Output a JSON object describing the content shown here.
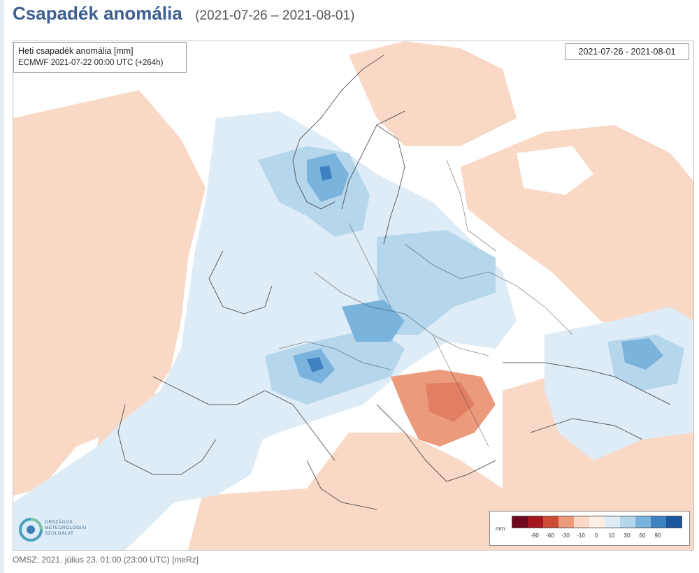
{
  "header": {
    "title": "Csapadék anomália",
    "period": "(2021-07-26 – 2021-08-01)"
  },
  "map": {
    "info_title": "Heti csapadék anomália [mm]",
    "info_model": "ECMWF 2021-07-22 00:00 UTC (+264h)",
    "date_range": "2021-07-26 - 2021-08-01"
  },
  "legend": {
    "unit": "mm",
    "ticks": [
      "-90",
      "-60",
      "-30",
      "-10",
      "0",
      "10",
      "30",
      "60",
      "90"
    ],
    "colors": [
      "#6e0a1e",
      "#a3161e",
      "#cf4d34",
      "#eb9a7b",
      "#f9d8c6",
      "#fdeee4",
      "#ddecf7",
      "#b6d6ec",
      "#7ab3dc",
      "#3f82c2",
      "#1b569e"
    ]
  },
  "logo": {
    "line1": "ORSZÁGOS",
    "line2": "METEOROLÓGIAI",
    "line3": "SZOLGÁLAT"
  },
  "footer": {
    "text": "OMSZ: 2021. július 23. 01:00 (23:00 UTC)  [meRz]"
  }
}
